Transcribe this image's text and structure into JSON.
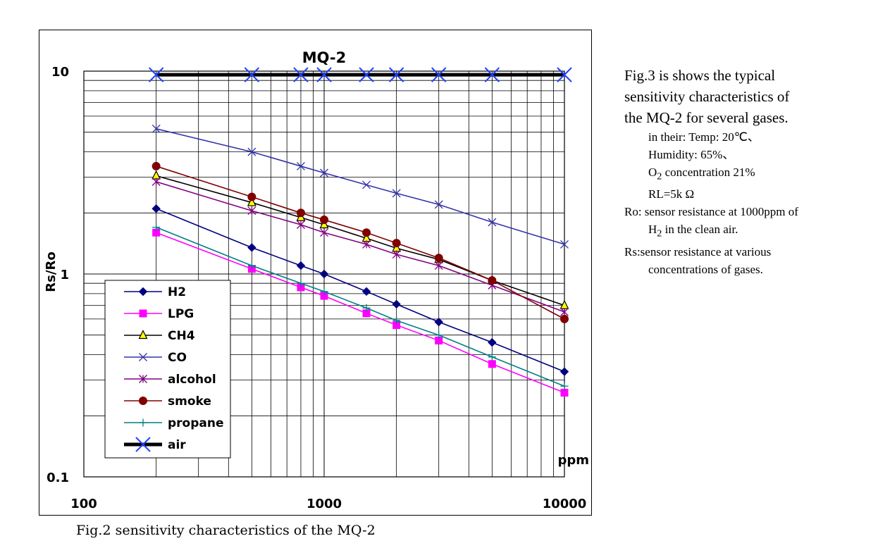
{
  "chart_data": {
    "type": "line",
    "title": "MQ-2",
    "xlabel": "ppm",
    "ylabel": "Rs/Ro",
    "x_scale": "log",
    "y_scale": "log",
    "xlim": [
      100,
      10000
    ],
    "ylim": [
      0.1,
      10
    ],
    "x_ticks": [
      "100",
      "1000",
      "10000"
    ],
    "y_ticks": [
      "0.1",
      "1",
      "10"
    ],
    "grid": true,
    "legend_position": "bottom-left",
    "series": [
      {
        "name": "H2",
        "color": "#000080",
        "marker": "diamond",
        "x": [
          200,
          500,
          800,
          1000,
          1500,
          2000,
          3000,
          5000,
          10000
        ],
        "y": [
          2.1,
          1.35,
          1.1,
          1.0,
          0.82,
          0.71,
          0.58,
          0.46,
          0.33
        ]
      },
      {
        "name": "LPG",
        "color": "#ff00ff",
        "marker": "square",
        "x": [
          200,
          500,
          800,
          1000,
          1500,
          2000,
          3000,
          5000,
          10000
        ],
        "y": [
          1.6,
          1.06,
          0.86,
          0.78,
          0.64,
          0.56,
          0.47,
          0.36,
          0.26
        ]
      },
      {
        "name": "CH4",
        "color": "#000000",
        "marker": "triangle",
        "x": [
          200,
          500,
          800,
          1000,
          1500,
          2000,
          3000,
          5000,
          10000
        ],
        "y": [
          3.05,
          2.25,
          1.9,
          1.75,
          1.5,
          1.34,
          1.18,
          0.93,
          0.7
        ]
      },
      {
        "name": "CO",
        "color": "#3333aa",
        "marker": "x",
        "x": [
          200,
          500,
          800,
          1000,
          1500,
          2000,
          3000,
          5000,
          10000
        ],
        "y": [
          5.2,
          4.0,
          3.4,
          3.15,
          2.75,
          2.5,
          2.2,
          1.8,
          1.4
        ]
      },
      {
        "name": "alcohol",
        "color": "#800080",
        "marker": "asterisk",
        "x": [
          200,
          500,
          800,
          1000,
          1500,
          2000,
          3000,
          5000,
          10000
        ],
        "y": [
          2.85,
          2.05,
          1.75,
          1.6,
          1.4,
          1.25,
          1.1,
          0.88,
          0.65
        ]
      },
      {
        "name": "smoke",
        "color": "#800000",
        "marker": "circle",
        "x": [
          200,
          500,
          800,
          1000,
          1500,
          2000,
          3000,
          5000,
          10000
        ],
        "y": [
          3.4,
          2.4,
          2.0,
          1.85,
          1.6,
          1.42,
          1.2,
          0.93,
          0.6
        ]
      },
      {
        "name": "propane",
        "color": "#008080",
        "marker": "plus",
        "x": [
          200,
          500,
          800,
          1000,
          1500,
          2000,
          3000,
          5000,
          10000
        ],
        "y": [
          1.7,
          1.1,
          0.9,
          0.82,
          0.68,
          0.59,
          0.5,
          0.39,
          0.28
        ]
      },
      {
        "name": "air",
        "color": "#000000",
        "marker": "bigx",
        "x": [
          200,
          500,
          800,
          1000,
          1500,
          2000,
          3000,
          5000,
          10000
        ],
        "y": [
          9.6,
          9.6,
          9.6,
          9.6,
          9.6,
          9.6,
          9.6,
          9.6,
          9.6
        ]
      }
    ]
  },
  "caption": "Fig.2 sensitivity characteristics of the MQ-2",
  "description": {
    "line1": "Fig.3 is shows the typical",
    "line2": "sensitivity characteristics of",
    "line3": "the MQ-2 for several gases.",
    "temp": "in their: Temp: 20℃、",
    "humidity": "Humidity: 65%、",
    "o2_prefix": "O",
    "o2_sub": "2",
    "o2_suffix": " concentration 21%",
    "rl": "RL=5k Ω",
    "ro1": "Ro: sensor resistance at 1000ppm of",
    "ro2_prefix": "H",
    "ro2_sub": "2",
    "ro2_suffix": " in the clean air.",
    "rs1": "Rs:sensor resistance at various",
    "rs2": "concentrations of gases."
  }
}
